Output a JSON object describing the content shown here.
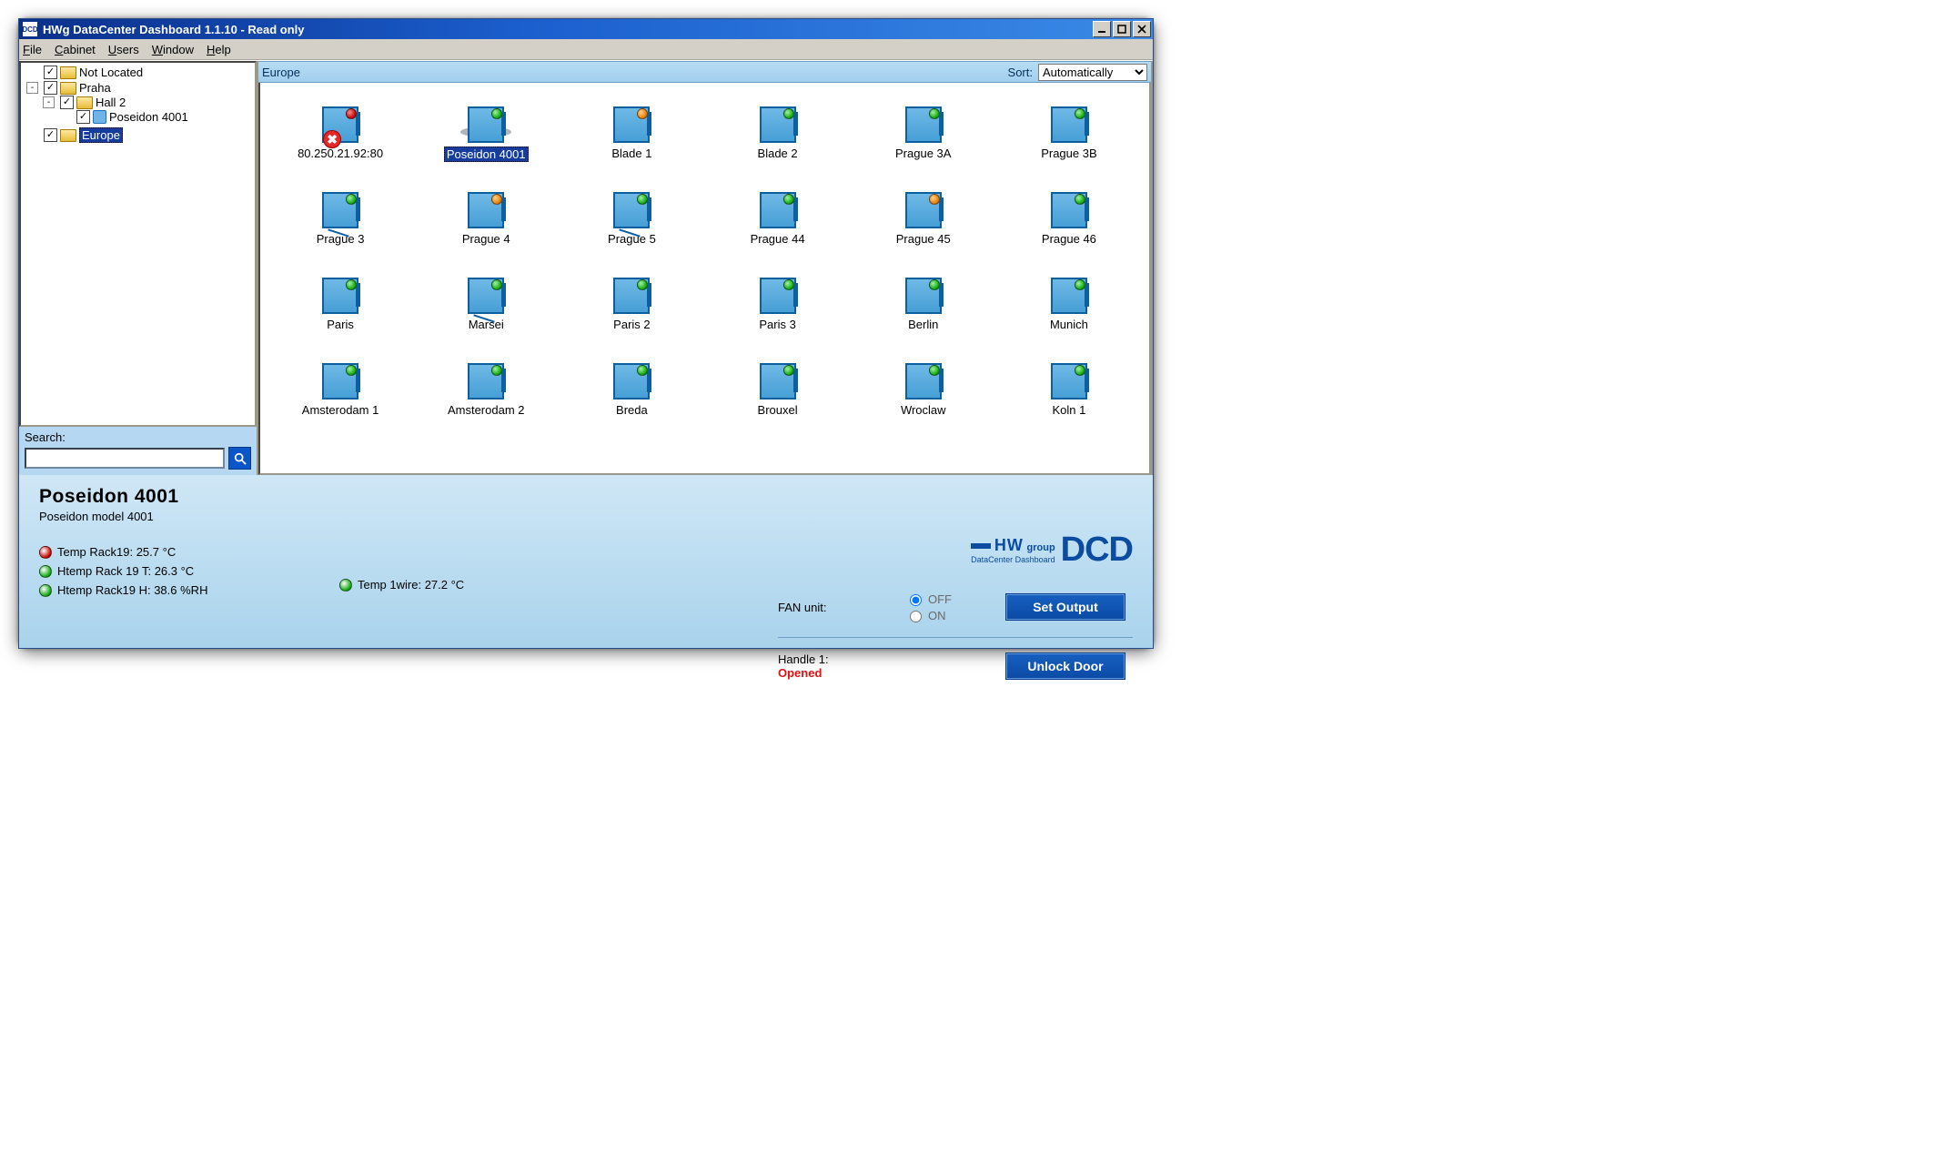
{
  "window": {
    "app_icon_text": "DCD",
    "title": "HWg DataCenter Dashboard 1.1.10 - Read only"
  },
  "menubar": {
    "items": [
      "File",
      "Cabinet",
      "Users",
      "Window",
      "Help"
    ]
  },
  "tree": {
    "nodes": [
      {
        "label": "Not Located",
        "checked": true
      },
      {
        "label": "Praha",
        "checked": true,
        "expander": "-",
        "children": [
          {
            "label": "Hall 2",
            "checked": true,
            "expander": "-",
            "children": [
              {
                "label": "Poseidon 4001",
                "checked": true,
                "icon": "node"
              }
            ]
          }
        ]
      },
      {
        "label": "Europe",
        "checked": true,
        "selected": true
      }
    ]
  },
  "search": {
    "label": "Search:",
    "value": ""
  },
  "iconview": {
    "path": "Europe",
    "sort_label": "Sort:",
    "sort_value": "Automatically",
    "items": [
      {
        "name": "80.250.21.92:80",
        "led": "red",
        "error": true
      },
      {
        "name": "Poseidon 4001",
        "led": "green",
        "selected": true,
        "shadow": true
      },
      {
        "name": "Blade 1",
        "led": "orange"
      },
      {
        "name": "Blade 2",
        "led": "green"
      },
      {
        "name": "Prague 3A",
        "led": "green"
      },
      {
        "name": "Prague 3B",
        "led": "green"
      },
      {
        "name": "Prague 3",
        "led": "green",
        "tail": true
      },
      {
        "name": "Prague 4",
        "led": "orange"
      },
      {
        "name": "Prague 5",
        "led": "green",
        "tail": true
      },
      {
        "name": "Prague 44",
        "led": "green"
      },
      {
        "name": "Prague 45",
        "led": "orange"
      },
      {
        "name": "Prague 46",
        "led": "green"
      },
      {
        "name": "Paris",
        "led": "green"
      },
      {
        "name": "Marsei",
        "led": "green",
        "tail": true
      },
      {
        "name": "Paris 2",
        "led": "green"
      },
      {
        "name": "Paris 3",
        "led": "green"
      },
      {
        "name": "Berlin",
        "led": "green"
      },
      {
        "name": "Munich",
        "led": "green"
      },
      {
        "name": "Amsterodam 1",
        "led": "green"
      },
      {
        "name": "Amsterodam 2",
        "led": "green"
      },
      {
        "name": "Breda",
        "led": "green"
      },
      {
        "name": "Brouxel",
        "led": "green"
      },
      {
        "name": "Wroclaw",
        "led": "green"
      },
      {
        "name": "Koln 1",
        "led": "green"
      }
    ]
  },
  "footer": {
    "title": "Poseidon 4001",
    "subtitle": "Poseidon model 4001",
    "sensors_col1": [
      {
        "color": "red",
        "text": "Temp Rack19: 25.7 °C"
      },
      {
        "color": "green",
        "text": "Htemp Rack 19 T: 26.3 °C"
      },
      {
        "color": "green",
        "text": "Htemp Rack19 H: 38.6 %RH"
      }
    ],
    "sensors_col2": [
      {
        "color": "green",
        "text": "Temp 1wire: 27.2 °C"
      }
    ],
    "branding": {
      "hw": "HW",
      "group": "group",
      "dcd": "DCD",
      "tag": "DataCenter Dashboard"
    },
    "fan": {
      "label": "FAN unit:",
      "off": "OFF",
      "on": "ON",
      "value": "OFF"
    },
    "set_output": "Set Output",
    "handle": {
      "label": "Handle 1:",
      "state": "Opened"
    },
    "unlock": "Unlock Door"
  },
  "colors": {
    "led_green": "#0aa60a",
    "led_orange": "#e67a00",
    "led_red": "#c20000",
    "title_bar": "#1b5fce",
    "accent_blue": "#0b4aa5"
  }
}
